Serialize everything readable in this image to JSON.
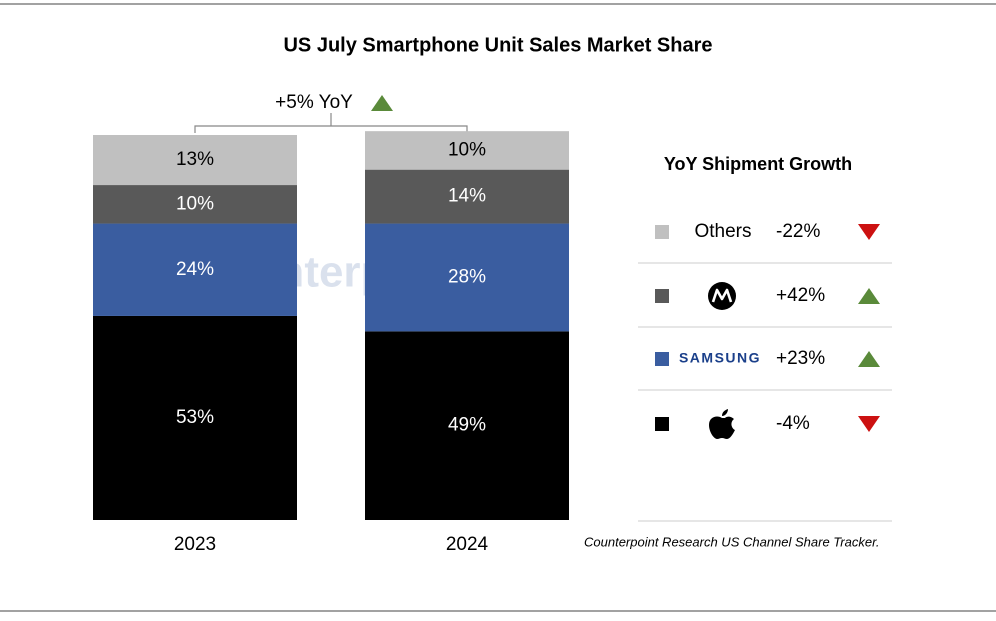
{
  "chart_data": {
    "type": "stacked_bar",
    "title": "US July Smartphone Unit Sales Market Share",
    "categories": [
      "2023",
      "2024"
    ],
    "ylim": [
      0,
      100
    ],
    "series": [
      {
        "color": "#000000",
        "values": [
          53,
          49
        ],
        "value_labels": [
          "53%",
          "49%"
        ],
        "growth": {
          "value": -4,
          "label": "-4%"
        }
      },
      {
        "name": "SAMSUNG",
        "color": "#3a5da0",
        "values": [
          24,
          28
        ],
        "value_labels": [
          "24%",
          "28%"
        ],
        "growth": {
          "value": 23,
          "label": "+23%"
        }
      },
      {
        "color": "#595959",
        "values": [
          10,
          14
        ],
        "value_labels": [
          "10%",
          "14%"
        ],
        "growth": {
          "value": 42,
          "label": "+42%"
        }
      },
      {
        "name": "Others",
        "color": "#c0c0c0",
        "values": [
          13,
          10
        ],
        "value_labels": [
          "13%",
          "10%"
        ],
        "growth": {
          "value": -22,
          "label": "-22%"
        }
      }
    ],
    "annotation": {
      "value": 5,
      "label": "+5% YoY"
    },
    "legend_title": "YoY Shipment Growth",
    "watermark": "Counterpoint",
    "source": "Counterpoint Research US Channel Share Tracker."
  }
}
